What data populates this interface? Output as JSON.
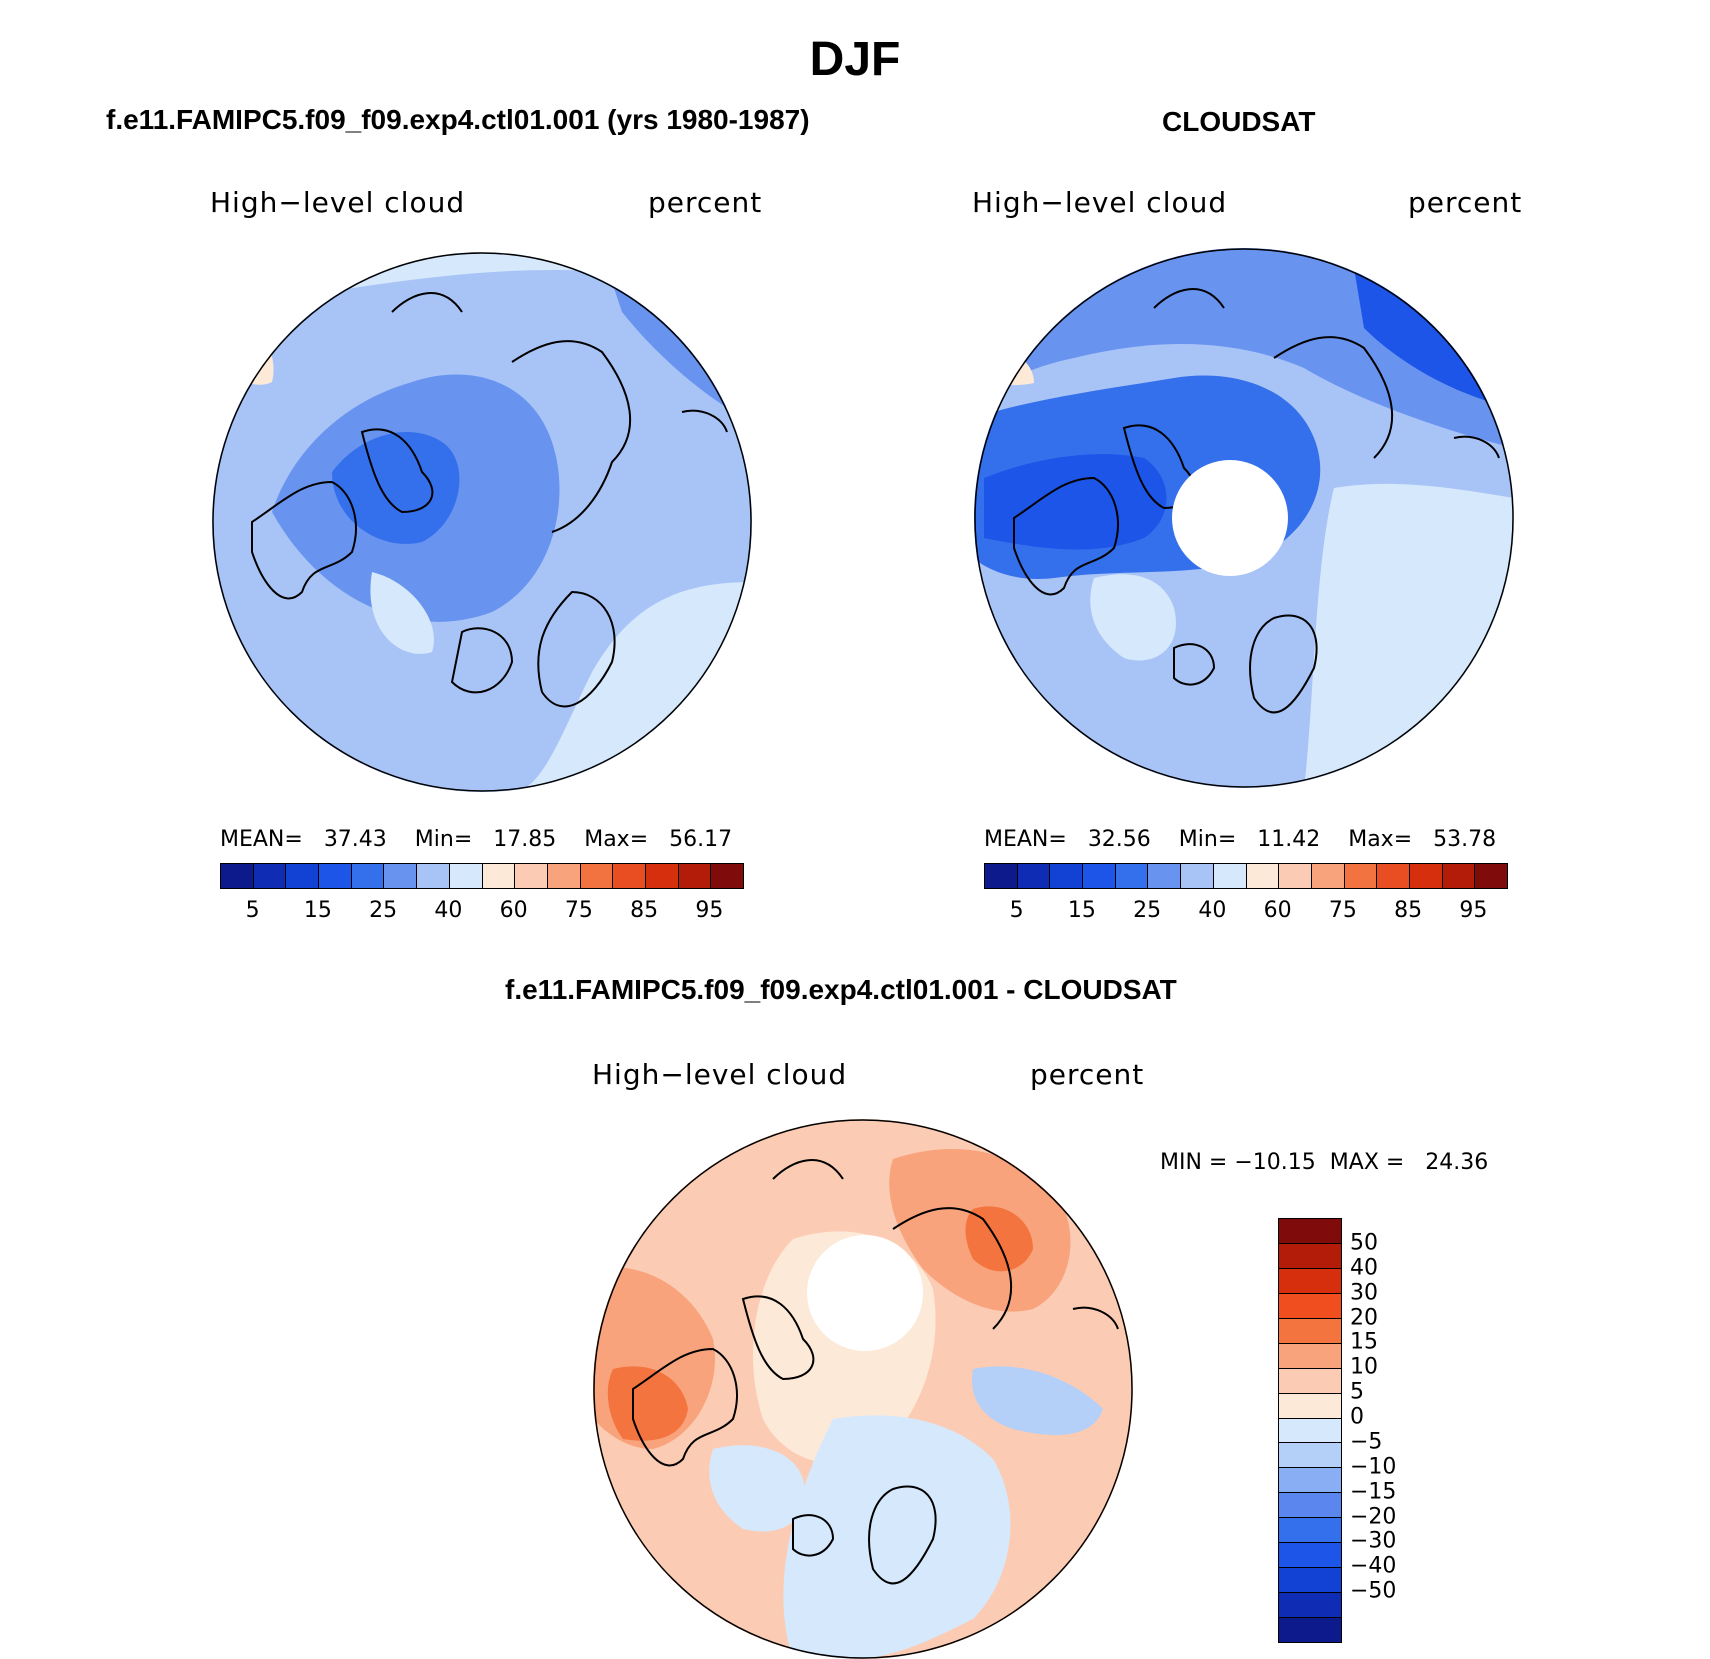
{
  "title": "DJF",
  "chart_data": [
    {
      "type": "polar-map",
      "panel_title": "f.e11.FAMIPC5.f09_f09.exp4.ctl01.001 (yrs 1980-1987)",
      "variable": "High−level cloud",
      "units": "percent",
      "stats": {
        "mean_label": "MEAN=",
        "mean": "37.43",
        "min_label": "Min=",
        "min": "17.85",
        "max_label": "Max=",
        "max": "56.17"
      },
      "colorbar": {
        "colors": [
          "#0c1a8c",
          "#0f2cb4",
          "#1242d4",
          "#1c55e8",
          "#3570ec",
          "#6894f0",
          "#a8c4f7",
          "#d6e8fc",
          "#fde9d8",
          "#fccbb3",
          "#f8a37c",
          "#f2733f",
          "#e94d22",
          "#d62f0d",
          "#b41c0a",
          "#800b0b"
        ],
        "tick_labels": [
          "5",
          "15",
          "25",
          "40",
          "60",
          "75",
          "85",
          "95"
        ]
      },
      "field": "model high-level cloud fraction, Arctic polar stereographic view"
    },
    {
      "type": "polar-map",
      "panel_title": "CLOUDSAT",
      "variable": "High−level cloud",
      "units": "percent",
      "stats": {
        "mean_label": "MEAN=",
        "mean": "32.56",
        "min_label": "Min=",
        "min": "11.42",
        "max_label": "Max=",
        "max": "53.78"
      },
      "colorbar": {
        "colors": [
          "#0c1a8c",
          "#0f2cb4",
          "#1242d4",
          "#1c55e8",
          "#3570ec",
          "#6894f0",
          "#a8c4f7",
          "#d6e8fc",
          "#fde9d8",
          "#fccbb3",
          "#f8a37c",
          "#f2733f",
          "#e94d22",
          "#d62f0d",
          "#b41c0a",
          "#800b0b"
        ],
        "tick_labels": [
          "5",
          "15",
          "25",
          "40",
          "60",
          "75",
          "85",
          "95"
        ]
      },
      "field": "observed high-level cloud fraction with polar data gap"
    },
    {
      "type": "polar-map",
      "panel_title": "f.e11.FAMIPC5.f09_f09.exp4.ctl01.001 - CLOUDSAT",
      "variable": "High−level cloud",
      "units": "percent",
      "stats": {
        "min_label": "MIN =",
        "min": "−10.15",
        "max_label": "MAX =",
        "max": "24.36"
      },
      "colorbar": {
        "colors": [
          "#800b0b",
          "#b41c0a",
          "#d62f0d",
          "#f04e1f",
          "#f4743f",
          "#f8a37c",
          "#fccbb3",
          "#fde9d8",
          "#d6e8fc",
          "#b4cff8",
          "#8aaef3",
          "#5b86ee",
          "#3570ec",
          "#1c55e8",
          "#1242d4",
          "#0f2cb4",
          "#0c1a8c"
        ],
        "tick_labels": [
          "50",
          "40",
          "30",
          "20",
          "15",
          "10",
          "5",
          "0",
          "−5",
          "−10",
          "−15",
          "−20",
          "−30",
          "−40",
          "−50"
        ]
      },
      "field": "difference, mostly positive (model higher) with polar data gap"
    }
  ]
}
